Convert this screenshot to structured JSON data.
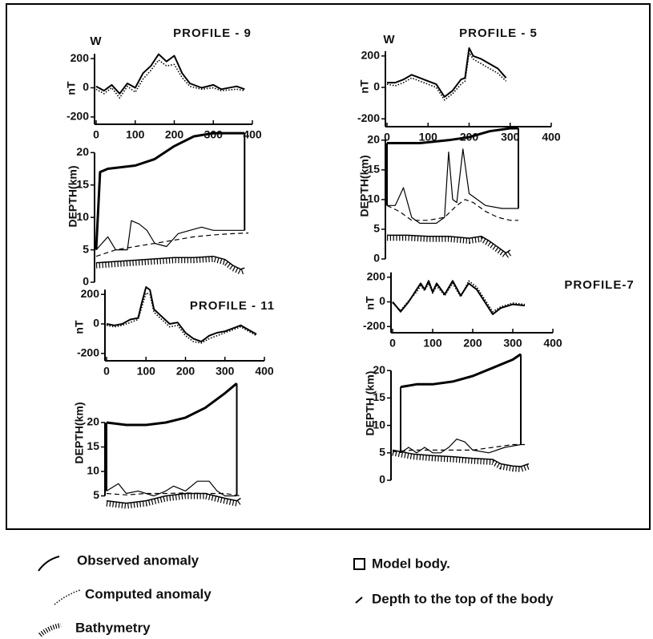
{
  "chart_data": [
    {
      "type": "line",
      "title": "PROFILE - 9",
      "annotation": "W",
      "ylabel": "nT",
      "xlim": [
        0,
        400
      ],
      "ylim": [
        -250,
        250
      ],
      "xticks": [
        0,
        100,
        200,
        300,
        400
      ],
      "yticks": [
        -200,
        0,
        200
      ],
      "series": [
        {
          "line_style": "solid",
          "color": "#000",
          "x": [
            0,
            20,
            40,
            60,
            80,
            100,
            120,
            140,
            160,
            180,
            200,
            220,
            240,
            270,
            300,
            320,
            360,
            380
          ],
          "values": [
            10,
            -20,
            20,
            -40,
            30,
            0,
            100,
            150,
            230,
            180,
            220,
            100,
            30,
            0,
            20,
            -10,
            10,
            -10
          ]
        },
        {
          "line_style": "dotted",
          "color": "#000",
          "x": [
            0,
            20,
            40,
            60,
            80,
            100,
            120,
            140,
            160,
            180,
            200,
            220,
            240,
            270,
            300,
            320,
            360,
            380
          ],
          "values": [
            -10,
            -40,
            0,
            -70,
            10,
            -30,
            60,
            120,
            190,
            150,
            160,
            70,
            10,
            -10,
            0,
            -20,
            -10,
            -20
          ]
        }
      ]
    },
    {
      "type": "line",
      "ylabel": "DEPTH(km)",
      "xlim": [
        0,
        400
      ],
      "ylim": [
        0,
        24
      ],
      "yticks": [
        0,
        5,
        10,
        15,
        20
      ],
      "series": [
        {
          "line_style": "hatched",
          "color": "#000",
          "x": [
            0,
            50,
            100,
            150,
            200,
            250,
            300,
            330,
            350,
            370,
            380
          ],
          "values": [
            3,
            3.2,
            3.4,
            3.6,
            3.8,
            3.8,
            4,
            3.5,
            2.6,
            2,
            2.2
          ]
        },
        {
          "line_style": "dashed",
          "color": "#000",
          "x": [
            0,
            50,
            100,
            150,
            200,
            250,
            300,
            350,
            390
          ],
          "values": [
            4,
            5,
            5.5,
            6,
            6.5,
            7,
            7.3,
            7.5,
            7.6
          ]
        },
        {
          "line_style": "thin",
          "color": "#000",
          "x": [
            0,
            30,
            50,
            80,
            90,
            110,
            130,
            150,
            180,
            210,
            240,
            270,
            300,
            330,
            380
          ],
          "values": [
            5,
            7,
            5,
            5,
            9.5,
            9,
            8,
            6,
            5.5,
            7.5,
            8,
            8.5,
            8,
            8,
            8
          ]
        },
        {
          "line_style": "thick",
          "color": "#000",
          "x": [
            0,
            10,
            30,
            100,
            150,
            200,
            250,
            300,
            380
          ],
          "values": [
            5,
            17,
            17.5,
            18,
            19,
            21,
            22.5,
            23,
            23
          ]
        }
      ]
    },
    {
      "type": "line",
      "title": "PROFILE - 5",
      "annotation": "W",
      "ylabel": "nT",
      "xlim": [
        0,
        400
      ],
      "ylim": [
        -250,
        250
      ],
      "xticks": [
        0,
        100,
        200,
        300,
        400
      ],
      "yticks": [
        -200,
        0,
        200
      ],
      "series": [
        {
          "line_style": "solid",
          "color": "#000",
          "x": [
            0,
            20,
            40,
            60,
            80,
            100,
            120,
            140,
            160,
            180,
            190,
            200,
            210,
            230,
            250,
            270,
            290
          ],
          "values": [
            30,
            30,
            50,
            80,
            60,
            40,
            20,
            -60,
            -20,
            50,
            60,
            250,
            200,
            180,
            150,
            120,
            60
          ]
        },
        {
          "line_style": "dotted",
          "color": "#000",
          "x": [
            0,
            20,
            40,
            60,
            80,
            100,
            120,
            140,
            160,
            180,
            190,
            200,
            210,
            230,
            250,
            270,
            290
          ],
          "values": [
            20,
            10,
            30,
            60,
            40,
            20,
            0,
            -80,
            -40,
            20,
            40,
            220,
            180,
            150,
            120,
            90,
            40
          ]
        }
      ]
    },
    {
      "type": "line",
      "ylabel": "DEPTH(km)",
      "xlim": [
        0,
        400
      ],
      "ylim": [
        0,
        22
      ],
      "yticks": [
        0,
        5,
        10,
        15,
        20
      ],
      "series": [
        {
          "line_style": "hatched",
          "color": "#000",
          "x": [
            0,
            50,
            100,
            150,
            200,
            230,
            250,
            270,
            290,
            300
          ],
          "values": [
            4,
            4,
            3.8,
            3.8,
            3.5,
            3.8,
            3,
            2,
            1,
            1.5
          ]
        },
        {
          "line_style": "dashed",
          "color": "#000",
          "x": [
            0,
            30,
            60,
            100,
            140,
            170,
            190,
            210,
            240,
            270,
            300,
            320
          ],
          "values": [
            9,
            8,
            6.5,
            6.5,
            7,
            9,
            10,
            9.5,
            8,
            7,
            6.5,
            6.5
          ]
        },
        {
          "line_style": "thin",
          "color": "#000",
          "x": [
            0,
            20,
            40,
            60,
            80,
            120,
            140,
            150,
            160,
            170,
            185,
            200,
            240,
            280,
            320
          ],
          "values": [
            9,
            9,
            12,
            7,
            6,
            6,
            7,
            18,
            10,
            9.5,
            18.5,
            11,
            9,
            8.5,
            8.5
          ]
        },
        {
          "line_style": "thick",
          "color": "#000",
          "x": [
            0,
            80,
            150,
            200,
            250,
            300,
            320
          ],
          "values": [
            19.5,
            19.5,
            20,
            20.5,
            21.5,
            22,
            22
          ]
        }
      ]
    },
    {
      "type": "line",
      "title": "PROFILE - 11",
      "ylabel": "nT",
      "xlim": [
        0,
        400
      ],
      "ylim": [
        -250,
        250
      ],
      "xticks": [
        0,
        100,
        200,
        300,
        400
      ],
      "yticks": [
        -200,
        0,
        200
      ],
      "series": [
        {
          "line_style": "solid",
          "color": "#000",
          "x": [
            0,
            20,
            40,
            60,
            80,
            90,
            100,
            110,
            120,
            140,
            160,
            180,
            200,
            220,
            240,
            260,
            280,
            300,
            320,
            340,
            360,
            380
          ],
          "values": [
            0,
            -10,
            0,
            30,
            40,
            150,
            250,
            230,
            100,
            50,
            0,
            10,
            -60,
            -100,
            -120,
            -80,
            -60,
            -50,
            -30,
            -10,
            -40,
            -70
          ]
        },
        {
          "line_style": "dotted",
          "color": "#000",
          "x": [
            0,
            20,
            40,
            60,
            80,
            90,
            100,
            110,
            120,
            140,
            160,
            180,
            200,
            220,
            240,
            260,
            280,
            300,
            320,
            340,
            360,
            380
          ],
          "values": [
            -10,
            -20,
            -10,
            10,
            30,
            120,
            210,
            200,
            80,
            30,
            -20,
            -10,
            -80,
            -120,
            -130,
            -100,
            -80,
            -60,
            -40,
            -20,
            -50,
            -80
          ]
        }
      ]
    },
    {
      "type": "line",
      "ylabel": "DEPTH(km)",
      "xlim": [
        0,
        400
      ],
      "ylim": [
        0,
        30
      ],
      "yticks": [
        5,
        10,
        15,
        20
      ],
      "series": [
        {
          "line_style": "hatched",
          "color": "#000",
          "x": [
            0,
            50,
            100,
            150,
            200,
            250,
            300,
            330,
            340
          ],
          "values": [
            4,
            3.5,
            4,
            5,
            5.5,
            5.5,
            4.5,
            4,
            4.5
          ]
        },
        {
          "line_style": "dashed",
          "color": "#000",
          "x": [
            0,
            50,
            100,
            150,
            200,
            250,
            300,
            340
          ],
          "values": [
            5.5,
            5.2,
            5.5,
            5.5,
            5.6,
            5.5,
            5.5,
            5
          ]
        },
        {
          "line_style": "thin",
          "color": "#000",
          "x": [
            0,
            30,
            50,
            80,
            120,
            150,
            170,
            200,
            230,
            260,
            280,
            300,
            330
          ],
          "values": [
            6,
            7.5,
            5.5,
            6,
            5,
            6,
            7,
            6,
            8,
            8,
            6,
            5,
            5
          ]
        },
        {
          "line_style": "thick",
          "color": "#000",
          "x": [
            0,
            50,
            100,
            150,
            200,
            250,
            300,
            330
          ],
          "values": [
            20,
            19.5,
            19.5,
            20,
            21,
            23,
            26,
            28
          ]
        }
      ]
    },
    {
      "type": "line",
      "title": "PROFILE-7",
      "ylabel": "nT",
      "xlim": [
        0,
        400
      ],
      "ylim": [
        -250,
        250
      ],
      "xticks": [
        0,
        100,
        200,
        300,
        400
      ],
      "yticks": [
        -200,
        0,
        200
      ],
      "series": [
        {
          "line_style": "solid",
          "color": "#000",
          "x": [
            0,
            20,
            40,
            60,
            70,
            80,
            90,
            100,
            110,
            130,
            150,
            170,
            190,
            210,
            230,
            250,
            270,
            300,
            330
          ],
          "values": [
            0,
            -80,
            0,
            100,
            150,
            100,
            170,
            80,
            150,
            60,
            170,
            50,
            150,
            100,
            0,
            -100,
            -50,
            -20,
            -30
          ]
        },
        {
          "line_style": "dotted",
          "color": "#000",
          "x": [
            0,
            20,
            40,
            60,
            70,
            80,
            90,
            100,
            110,
            130,
            150,
            170,
            190,
            210,
            230,
            250,
            270,
            300,
            330
          ],
          "values": [
            -10,
            -70,
            10,
            80,
            130,
            90,
            150,
            70,
            130,
            50,
            150,
            40,
            170,
            120,
            20,
            -80,
            -40,
            -10,
            -20
          ]
        }
      ]
    },
    {
      "type": "line",
      "ylabel": "DEPTH (km)",
      "xlim": [
        0,
        400
      ],
      "ylim": [
        0,
        25
      ],
      "yticks": [
        0,
        5,
        10,
        15,
        20
      ],
      "series": [
        {
          "line_style": "hatched",
          "color": "#000",
          "x": [
            0,
            50,
            100,
            150,
            200,
            250,
            270,
            300,
            320,
            340
          ],
          "values": [
            5.5,
            4.8,
            4.5,
            4.3,
            4,
            3.8,
            3,
            2.6,
            2.5,
            3
          ]
        },
        {
          "line_style": "dashed",
          "color": "#000",
          "x": [
            0,
            50,
            100,
            150,
            200,
            250,
            300,
            330
          ],
          "values": [
            5.2,
            5.5,
            5.5,
            5.5,
            5.5,
            6,
            6.5,
            6.5
          ]
        },
        {
          "line_style": "thin",
          "color": "#000",
          "x": [
            20,
            40,
            60,
            80,
            100,
            120,
            140,
            160,
            180,
            200,
            240,
            280,
            320
          ],
          "values": [
            5,
            6,
            5,
            6,
            5,
            5,
            6,
            7.5,
            7,
            5.5,
            5,
            6,
            6.5
          ]
        },
        {
          "line_style": "thick",
          "color": "#000",
          "x": [
            20,
            60,
            100,
            150,
            200,
            250,
            300,
            320
          ],
          "values": [
            17,
            17.5,
            17.5,
            18,
            19,
            20.5,
            22,
            23
          ]
        }
      ]
    }
  ],
  "legend": {
    "observed": "Observed anomaly",
    "computed": "Computed anomaly",
    "bathymetry": "Bathymetry",
    "model": "Model body.",
    "depth_top": "Depth to the top of the body"
  }
}
